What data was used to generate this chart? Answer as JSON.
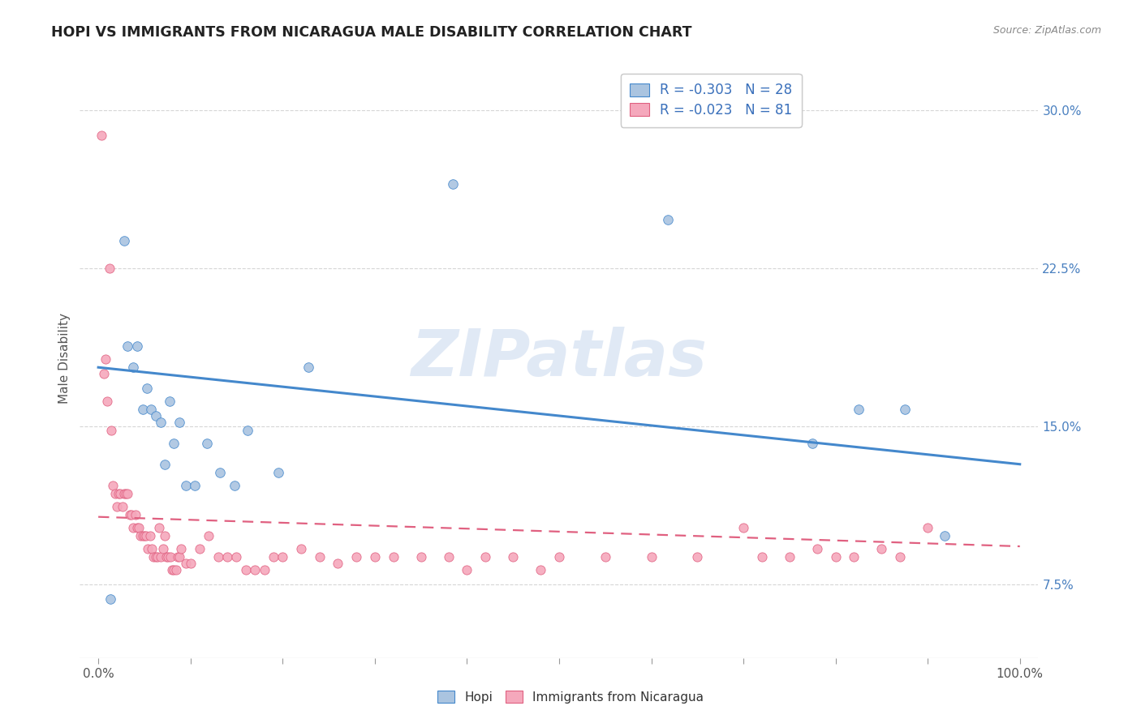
{
  "title": "HOPI VS IMMIGRANTS FROM NICARAGUA MALE DISABILITY CORRELATION CHART",
  "source": "Source: ZipAtlas.com",
  "ylabel": "Male Disability",
  "xlim": [
    -0.02,
    1.02
  ],
  "ylim": [
    0.04,
    0.325
  ],
  "xticks": [
    0.0,
    0.1,
    0.2,
    0.3,
    0.4,
    0.5,
    0.6,
    0.7,
    0.8,
    0.9,
    1.0
  ],
  "yticks": [
    0.075,
    0.15,
    0.225,
    0.3
  ],
  "yticklabels": [
    "7.5%",
    "15.0%",
    "22.5%",
    "30.0%"
  ],
  "legend_r1": "R = -0.303",
  "legend_n1": "N = 28",
  "legend_r2": "R = -0.023",
  "legend_n2": "N = 81",
  "hopi_color": "#aac4e0",
  "nicaragua_color": "#f5a8bc",
  "trendline_hopi_color": "#4488cc",
  "trendline_nicaragua_color": "#e06080",
  "watermark": "ZIPatlas",
  "hopi_x": [
    0.013,
    0.028,
    0.032,
    0.038,
    0.042,
    0.048,
    0.053,
    0.057,
    0.062,
    0.068,
    0.072,
    0.077,
    0.082,
    0.088,
    0.095,
    0.105,
    0.118,
    0.132,
    0.148,
    0.162,
    0.195,
    0.228,
    0.385,
    0.618,
    0.775,
    0.825,
    0.875,
    0.918
  ],
  "hopi_y": [
    0.068,
    0.238,
    0.188,
    0.178,
    0.188,
    0.158,
    0.168,
    0.158,
    0.155,
    0.152,
    0.132,
    0.162,
    0.142,
    0.152,
    0.122,
    0.122,
    0.142,
    0.128,
    0.122,
    0.148,
    0.128,
    0.178,
    0.265,
    0.248,
    0.142,
    0.158,
    0.158,
    0.098
  ],
  "nicaragua_x": [
    0.003,
    0.006,
    0.008,
    0.01,
    0.012,
    0.014,
    0.016,
    0.018,
    0.02,
    0.022,
    0.024,
    0.026,
    0.028,
    0.03,
    0.032,
    0.034,
    0.036,
    0.038,
    0.04,
    0.042,
    0.044,
    0.046,
    0.048,
    0.05,
    0.052,
    0.054,
    0.056,
    0.058,
    0.06,
    0.062,
    0.064,
    0.066,
    0.068,
    0.07,
    0.072,
    0.074,
    0.076,
    0.078,
    0.08,
    0.082,
    0.084,
    0.086,
    0.088,
    0.09,
    0.095,
    0.1,
    0.11,
    0.12,
    0.13,
    0.14,
    0.15,
    0.16,
    0.17,
    0.18,
    0.19,
    0.2,
    0.22,
    0.24,
    0.26,
    0.28,
    0.3,
    0.32,
    0.35,
    0.38,
    0.4,
    0.42,
    0.45,
    0.48,
    0.5,
    0.55,
    0.6,
    0.65,
    0.7,
    0.72,
    0.75,
    0.78,
    0.8,
    0.82,
    0.85,
    0.87,
    0.9
  ],
  "nicaragua_y": [
    0.288,
    0.175,
    0.182,
    0.162,
    0.225,
    0.148,
    0.122,
    0.118,
    0.112,
    0.118,
    0.118,
    0.112,
    0.118,
    0.118,
    0.118,
    0.108,
    0.108,
    0.102,
    0.108,
    0.102,
    0.102,
    0.098,
    0.098,
    0.098,
    0.098,
    0.092,
    0.098,
    0.092,
    0.088,
    0.088,
    0.088,
    0.102,
    0.088,
    0.092,
    0.098,
    0.088,
    0.088,
    0.088,
    0.082,
    0.082,
    0.082,
    0.088,
    0.088,
    0.092,
    0.085,
    0.085,
    0.092,
    0.098,
    0.088,
    0.088,
    0.088,
    0.082,
    0.082,
    0.082,
    0.088,
    0.088,
    0.092,
    0.088,
    0.085,
    0.088,
    0.088,
    0.088,
    0.088,
    0.088,
    0.082,
    0.088,
    0.088,
    0.082,
    0.088,
    0.088,
    0.088,
    0.088,
    0.102,
    0.088,
    0.088,
    0.092,
    0.088,
    0.088,
    0.092,
    0.088,
    0.102
  ],
  "hopi_trendline_x0": 0.0,
  "hopi_trendline_x1": 1.0,
  "hopi_trendline_y0": 0.178,
  "hopi_trendline_y1": 0.132,
  "nic_trendline_x0": 0.0,
  "nic_trendline_x1": 1.0,
  "nic_trendline_y0": 0.107,
  "nic_trendline_y1": 0.093
}
